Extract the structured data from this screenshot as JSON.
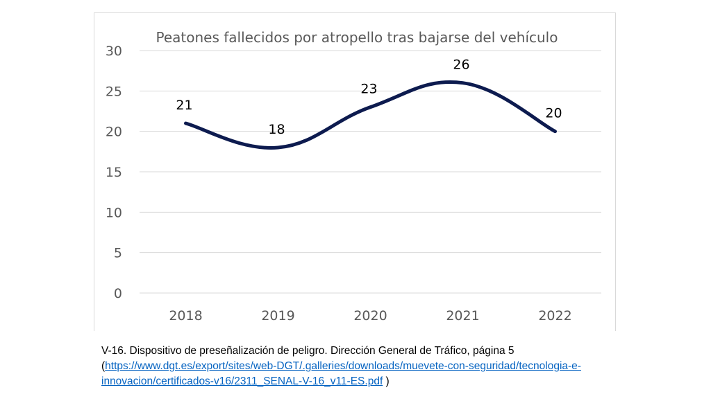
{
  "chart_data": {
    "type": "line",
    "title": "Peatones fallecidos por atropello tras bajarse del vehículo",
    "categories": [
      "2018",
      "2019",
      "2020",
      "2021",
      "2022"
    ],
    "series": [
      {
        "name": "Peatones fallecidos",
        "values": [
          21,
          18,
          23,
          26,
          20
        ]
      }
    ],
    "data_labels": [
      "21",
      "18",
      "23",
      "26",
      "20"
    ],
    "ylim": [
      0,
      30
    ],
    "yticks": [
      0,
      5,
      10,
      15,
      20,
      25,
      30
    ],
    "xlabel": "",
    "ylabel": "",
    "grid": true,
    "smooth": true,
    "line_color": "#0d1b4f",
    "grid_color": "#d9d9d9"
  },
  "caption": {
    "text_before": "V-16. Dispositivo de preseñalización de peligro. Dirección General de Tráfico, página 5 (",
    "link": "https://www.dgt.es/export/sites/web-DGT/.galleries/downloads/muevete-con-seguridad/tecnologia-e-innovacion/certificados-v16/2311_SENAL-V-16_v11-ES.pdf",
    "text_after": " )"
  }
}
